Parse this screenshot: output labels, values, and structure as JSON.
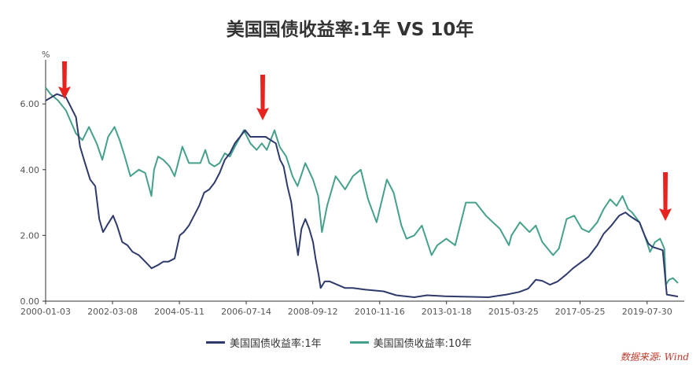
{
  "chart_data": {
    "type": "line",
    "title": "美国国债收益率:1年 VS 10年",
    "ylabel": "%",
    "ylim": [
      0,
      7.2
    ],
    "yticks": [
      0,
      2,
      4,
      6
    ],
    "ytick_labels": [
      "0.00",
      "2.00",
      "4.00",
      "6.00"
    ],
    "xlim": [
      "2000-01-03",
      "2020-07-31"
    ],
    "xtick_labels": [
      "2000-01-03",
      "2002-03-08",
      "2004-05-11",
      "2006-07-14",
      "2008-09-12",
      "2010-11-16",
      "2013-01-18",
      "2015-03-25",
      "2017-05-25",
      "2019-07-30"
    ],
    "grid": false,
    "legend_position": "bottom",
    "series": [
      {
        "name": "美国国债收益率:1年",
        "color": "#2e3a6b",
        "x": [
          "2000-01-03",
          "2000-05-15",
          "2000-09-01",
          "2000-12-29",
          "2001-02-15",
          "2001-04-15",
          "2001-06-15",
          "2001-08-15",
          "2001-10-01",
          "2001-11-15",
          "2002-01-01",
          "2002-03-15",
          "2002-05-01",
          "2002-07-01",
          "2002-09-01",
          "2002-11-01",
          "2003-01-15",
          "2003-04-01",
          "2003-06-15",
          "2003-09-01",
          "2003-11-01",
          "2004-01-01",
          "2004-03-15",
          "2004-05-15",
          "2004-07-01",
          "2004-09-01",
          "2004-11-01",
          "2005-01-01",
          "2005-03-01",
          "2005-05-01",
          "2005-07-01",
          "2005-09-01",
          "2005-11-01",
          "2006-01-01",
          "2006-03-01",
          "2006-05-01",
          "2006-07-01",
          "2006-09-01",
          "2006-11-01",
          "2007-01-01",
          "2007-03-01",
          "2007-05-01",
          "2007-07-01",
          "2007-08-20",
          "2007-10-01",
          "2007-11-15",
          "2008-01-01",
          "2008-02-15",
          "2008-03-20",
          "2008-05-01",
          "2008-06-15",
          "2008-08-01",
          "2008-09-15",
          "2008-10-15",
          "2008-11-20",
          "2008-12-15",
          "2009-02-01",
          "2009-04-01",
          "2009-07-01",
          "2009-10-01",
          "2010-01-01",
          "2010-06-01",
          "2011-01-01",
          "2011-06-01",
          "2012-01-01",
          "2012-06-01",
          "2013-01-01",
          "2013-06-01",
          "2014-01-01",
          "2014-06-01",
          "2015-01-01",
          "2015-06-01",
          "2015-09-15",
          "2015-12-15",
          "2016-03-01",
          "2016-06-01",
          "2016-09-01",
          "2016-12-15",
          "2017-03-01",
          "2017-06-15",
          "2017-09-01",
          "2017-12-15",
          "2018-03-01",
          "2018-06-01",
          "2018-09-01",
          "2018-11-15",
          "2019-01-01",
          "2019-03-01",
          "2019-05-01",
          "2019-07-01",
          "2019-08-15",
          "2019-10-01",
          "2019-12-01",
          "2020-02-01",
          "2020-03-20",
          "2020-07-31"
        ],
        "values": [
          6.1,
          6.3,
          6.2,
          5.6,
          4.7,
          4.2,
          3.7,
          3.5,
          2.5,
          2.1,
          2.3,
          2.6,
          2.3,
          1.8,
          1.7,
          1.5,
          1.4,
          1.2,
          1.0,
          1.1,
          1.2,
          1.2,
          1.3,
          2.0,
          2.1,
          2.3,
          2.6,
          2.9,
          3.3,
          3.4,
          3.6,
          3.9,
          4.3,
          4.5,
          4.8,
          5.0,
          5.2,
          5.0,
          5.0,
          5.0,
          5.0,
          4.9,
          4.8,
          4.3,
          4.1,
          3.5,
          3.0,
          2.0,
          1.4,
          2.2,
          2.5,
          2.2,
          1.8,
          1.3,
          0.8,
          0.4,
          0.6,
          0.6,
          0.5,
          0.4,
          0.4,
          0.35,
          0.3,
          0.18,
          0.12,
          0.18,
          0.15,
          0.14,
          0.13,
          0.12,
          0.2,
          0.28,
          0.38,
          0.65,
          0.62,
          0.5,
          0.6,
          0.82,
          1.0,
          1.2,
          1.35,
          1.7,
          2.05,
          2.3,
          2.6,
          2.7,
          2.6,
          2.5,
          2.4,
          2.0,
          1.75,
          1.65,
          1.6,
          1.55,
          0.2,
          0.14
        ]
      },
      {
        "name": "美国国债收益率:10年",
        "color": "#45a08c",
        "x": [
          "2000-01-03",
          "2000-03-01",
          "2000-06-01",
          "2000-09-01",
          "2000-12-29",
          "2001-03-15",
          "2001-06-01",
          "2001-09-01",
          "2001-11-07",
          "2002-01-15",
          "2002-04-01",
          "2002-06-01",
          "2002-08-01",
          "2002-10-07",
          "2003-01-15",
          "2003-04-01",
          "2003-06-13",
          "2003-07-15",
          "2003-09-01",
          "2003-11-01",
          "2004-01-15",
          "2004-03-15",
          "2004-06-15",
          "2004-09-01",
          "2004-11-01",
          "2005-01-15",
          "2005-03-15",
          "2005-05-01",
          "2005-07-01",
          "2005-09-01",
          "2005-11-01",
          "2006-01-01",
          "2006-03-01",
          "2006-06-15",
          "2006-09-01",
          "2006-11-15",
          "2007-01-15",
          "2007-03-15",
          "2007-06-15",
          "2007-08-15",
          "2007-11-01",
          "2008-01-15",
          "2008-03-15",
          "2008-06-15",
          "2008-09-15",
          "2008-11-15",
          "2008-12-30",
          "2009-03-01",
          "2009-06-10",
          "2009-10-01",
          "2010-01-01",
          "2010-04-05",
          "2010-07-01",
          "2010-10-10",
          "2011-02-10",
          "2011-05-01",
          "2011-08-01",
          "2011-10-01",
          "2012-01-01",
          "2012-04-01",
          "2012-07-25",
          "2012-10-01",
          "2013-01-15",
          "2013-05-01",
          "2013-09-05",
          "2013-12-31",
          "2014-05-01",
          "2014-10-15",
          "2015-01-30",
          "2015-03-01",
          "2015-06-10",
          "2015-10-01",
          "2015-12-15",
          "2016-03-01",
          "2016-07-08",
          "2016-09-15",
          "2016-12-15",
          "2017-03-15",
          "2017-06-15",
          "2017-09-07",
          "2017-12-15",
          "2018-03-01",
          "2018-05-17",
          "2018-08-01",
          "2018-10-10",
          "2018-12-15",
          "2019-02-01",
          "2019-05-01",
          "2019-07-01",
          "2019-09-03",
          "2019-11-01",
          "2020-01-01",
          "2020-02-20",
          "2020-03-09",
          "2020-04-15",
          "2020-06-01",
          "2020-07-31"
        ],
        "values": [
          6.5,
          6.3,
          6.1,
          5.8,
          5.1,
          4.9,
          5.3,
          4.8,
          4.3,
          5.0,
          5.3,
          4.9,
          4.4,
          3.8,
          4.0,
          3.9,
          3.2,
          4.0,
          4.4,
          4.3,
          4.1,
          3.8,
          4.7,
          4.2,
          4.2,
          4.2,
          4.6,
          4.2,
          4.1,
          4.2,
          4.5,
          4.4,
          4.7,
          5.2,
          4.8,
          4.6,
          4.8,
          4.6,
          5.2,
          4.7,
          4.4,
          3.8,
          3.5,
          4.2,
          3.7,
          3.2,
          2.1,
          2.9,
          3.8,
          3.4,
          3.8,
          4.0,
          3.1,
          2.4,
          3.7,
          3.3,
          2.3,
          1.9,
          2.0,
          2.3,
          1.4,
          1.7,
          1.9,
          1.7,
          3.0,
          3.0,
          2.6,
          2.2,
          1.7,
          2.0,
          2.4,
          2.1,
          2.3,
          1.8,
          1.4,
          1.6,
          2.5,
          2.6,
          2.2,
          2.1,
          2.4,
          2.8,
          3.1,
          2.9,
          3.2,
          2.8,
          2.7,
          2.4,
          2.0,
          1.5,
          1.8,
          1.9,
          1.6,
          0.5,
          0.65,
          0.7,
          0.55
        ]
      }
    ],
    "annotations": [
      "down-arrow at 2000 peak",
      "down-arrow at 2006-2007 peak",
      "down-arrow at 2019 inversion"
    ]
  },
  "source_text": "数据来源: Wind"
}
